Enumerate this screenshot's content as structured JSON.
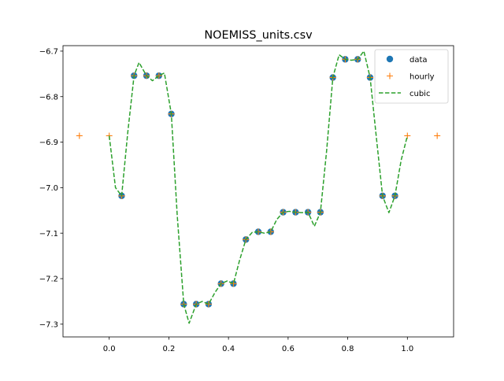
{
  "chart_data": {
    "type": "line",
    "title": "NOEMISS_units.csv",
    "xlabel": "",
    "ylabel": "",
    "xlim": [
      -0.155,
      1.155
    ],
    "ylim": [
      -7.328,
      -6.688
    ],
    "xticks": [
      0.0,
      0.2,
      0.4,
      0.6,
      0.8,
      1.0
    ],
    "xtick_labels": [
      "0.0",
      "0.2",
      "0.4",
      "0.6",
      "0.8",
      "1.0"
    ],
    "yticks": [
      -6.7,
      -6.8,
      -6.9,
      -7.0,
      -7.1,
      -7.2,
      -7.3
    ],
    "ytick_labels": [
      "−6.7",
      "−6.8",
      "−6.9",
      "−7.0",
      "−7.1",
      "−7.2",
      "−7.3"
    ],
    "grid": false,
    "legend_position": "top-right",
    "series": [
      {
        "name": "data",
        "style": "markers",
        "marker": "circle",
        "color": "#1f77b4",
        "x": [
          0.0417,
          0.0833,
          0.125,
          0.1667,
          0.2083,
          0.25,
          0.2917,
          0.3333,
          0.375,
          0.4167,
          0.4583,
          0.5,
          0.5417,
          0.5833,
          0.625,
          0.6667,
          0.7083,
          0.75,
          0.7917,
          0.8333,
          0.875,
          0.9167,
          0.9583
        ],
        "y": [
          -7.018,
          -6.754,
          -6.754,
          -6.754,
          -6.838,
          -7.256,
          -7.256,
          -7.256,
          -7.211,
          -7.211,
          -7.114,
          -7.097,
          -7.097,
          -7.054,
          -7.054,
          -7.054,
          -7.054,
          -6.758,
          -6.718,
          -6.718,
          -6.758,
          -7.018,
          -7.018
        ]
      },
      {
        "name": "hourly",
        "style": "markers",
        "marker": "plus",
        "color": "#ff7f0e",
        "x": [
          -0.1,
          0.0,
          0.0417,
          0.0833,
          0.125,
          0.1667,
          0.2083,
          0.25,
          0.2917,
          0.3333,
          0.375,
          0.4167,
          0.4583,
          0.5,
          0.5417,
          0.5833,
          0.625,
          0.6667,
          0.7083,
          0.75,
          0.7917,
          0.8333,
          0.875,
          0.9167,
          0.9583,
          1.0,
          1.1
        ],
        "y": [
          -6.886,
          -6.886,
          -7.018,
          -6.754,
          -6.754,
          -6.754,
          -6.838,
          -7.256,
          -7.256,
          -7.256,
          -7.211,
          -7.211,
          -7.114,
          -7.097,
          -7.097,
          -7.054,
          -7.054,
          -7.054,
          -7.054,
          -6.758,
          -6.718,
          -6.718,
          -6.758,
          -7.018,
          -7.018,
          -6.886,
          -6.886
        ]
      },
      {
        "name": "cubic",
        "style": "dashed-line",
        "color": "#2ca02c",
        "x": [
          0.0,
          0.021,
          0.0417,
          0.062,
          0.0833,
          0.1,
          0.125,
          0.145,
          0.1667,
          0.185,
          0.2083,
          0.228,
          0.25,
          0.268,
          0.2917,
          0.312,
          0.3333,
          0.355,
          0.375,
          0.396,
          0.4167,
          0.437,
          0.4583,
          0.48,
          0.5,
          0.52,
          0.5417,
          0.562,
          0.5833,
          0.604,
          0.625,
          0.646,
          0.6667,
          0.688,
          0.7083,
          0.729,
          0.75,
          0.771,
          0.7917,
          0.812,
          0.8333,
          0.854,
          0.875,
          0.896,
          0.9167,
          0.938,
          0.9583,
          0.979,
          1.0
        ],
        "y": [
          -6.886,
          -7.0,
          -7.018,
          -6.88,
          -6.754,
          -6.725,
          -6.754,
          -6.765,
          -6.754,
          -6.748,
          -6.838,
          -7.06,
          -7.256,
          -7.298,
          -7.256,
          -7.25,
          -7.256,
          -7.23,
          -7.211,
          -7.205,
          -7.211,
          -7.16,
          -7.114,
          -7.098,
          -7.097,
          -7.1,
          -7.097,
          -7.07,
          -7.054,
          -7.052,
          -7.054,
          -7.055,
          -7.054,
          -7.085,
          -7.054,
          -6.92,
          -6.758,
          -6.708,
          -6.718,
          -6.72,
          -6.718,
          -6.7,
          -6.758,
          -6.89,
          -7.018,
          -7.055,
          -7.018,
          -6.94,
          -6.886
        ]
      }
    ]
  }
}
